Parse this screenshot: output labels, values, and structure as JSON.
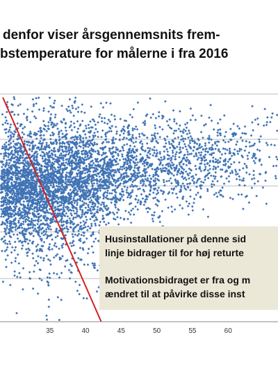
{
  "heading": {
    "line1": "denfor viser årsgennemsnits frem-",
    "line2": "bstemperature for målerne i fra 2016"
  },
  "callout": {
    "line1": "Husinstallationer på denne sid",
    "line2": "linje bidrager til for høj returte",
    "line3": "Motivationsbidraget er fra og m",
    "line4": "ændret til at påvirke disse inst"
  },
  "chart_data": {
    "type": "scatter",
    "title": "",
    "xlabel": "",
    "ylabel": "",
    "xlim": [
      28,
      67
    ],
    "x_ticks": [
      35,
      40,
      45,
      50,
      55,
      60
    ],
    "x_tick_labels": [
      "35",
      "40",
      "45",
      "50",
      "55",
      "60"
    ],
    "grid": "horizontal",
    "point_color": "#3f73b5",
    "reference_line": {
      "color": "#d42020",
      "from": {
        "x": 28.4
      },
      "to": {
        "x": 42.2
      }
    },
    "series": [
      {
        "points_summary": "Dense cloud of several thousand measurement points; densest around x 28–40, thinning toward x 60+",
        "clusters": [
          {
            "x_center": 32,
            "x_spread": 5,
            "density": "very high"
          },
          {
            "x_center": 42,
            "x_spread": 7,
            "density": "medium"
          },
          {
            "x_center": 54,
            "x_spread": 7,
            "density": "low"
          }
        ]
      }
    ]
  },
  "colors": {
    "points": "#3f73b5",
    "line": "#d42020",
    "callout_bg": "#ece8d8",
    "grid": "#bdbdbd"
  }
}
